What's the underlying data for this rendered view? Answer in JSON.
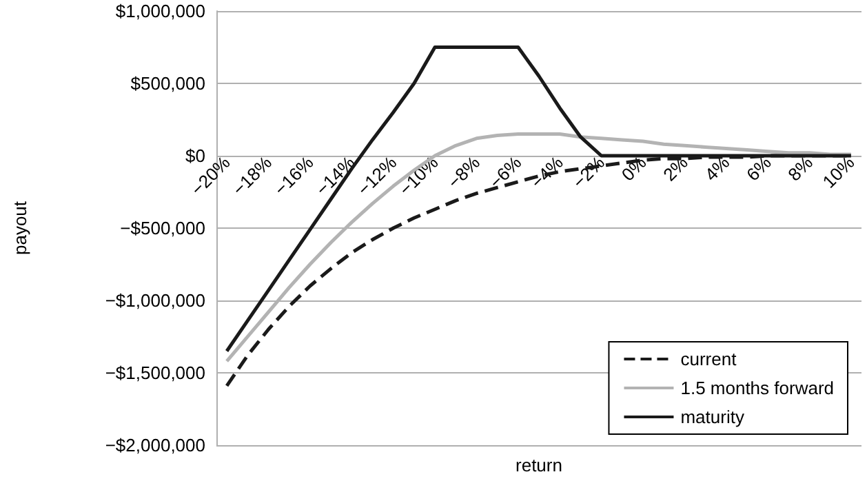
{
  "chart_data": {
    "type": "line",
    "xlabel": "return",
    "ylabel": "payout",
    "categories": [
      "−20%",
      null,
      "−18%",
      null,
      "−16%",
      null,
      "−14%",
      null,
      "−12%",
      null,
      "−10%",
      null,
      "−8%",
      null,
      "−6%",
      null,
      "−4%",
      null,
      "−2%",
      null,
      "0%",
      null,
      "2%",
      null,
      "4%",
      null,
      "6%",
      null,
      "8%",
      null,
      "10%"
    ],
    "series": [
      {
        "name": "current",
        "color": "#1a1a1a",
        "line_style": "dashed",
        "values": [
          -1590000,
          -1380000,
          -1200000,
          -1040000,
          -900000,
          -780000,
          -670000,
          -580000,
          -500000,
          -430000,
          -370000,
          -310000,
          -260000,
          -220000,
          -180000,
          -140000,
          -110000,
          -90000,
          -70000,
          -50000,
          -30000,
          -20000,
          -20000,
          -10000,
          -10000,
          -10000,
          0,
          0,
          0,
          0,
          0
        ]
      },
      {
        "name": "1.5 months forward",
        "color": "#b3b3b3",
        "line_style": "solid",
        "values": [
          -1420000,
          -1250000,
          -1080000,
          -910000,
          -750000,
          -600000,
          -460000,
          -330000,
          -210000,
          -100000,
          0,
          70000,
          120000,
          140000,
          150000,
          150000,
          150000,
          130000,
          120000,
          110000,
          100000,
          80000,
          70000,
          60000,
          50000,
          40000,
          30000,
          20000,
          20000,
          10000,
          10000
        ]
      },
      {
        "name": "maturity",
        "color": "#1a1a1a",
        "line_style": "solid",
        "values": [
          -1350000,
          -1140000,
          -930000,
          -720000,
          -510000,
          -300000,
          -90000,
          110000,
          300000,
          500000,
          750000,
          750000,
          750000,
          750000,
          750000,
          550000,
          330000,
          130000,
          0,
          0,
          0,
          0,
          0,
          0,
          0,
          0,
          0,
          0,
          0,
          0,
          0
        ]
      }
    ],
    "ylim": [
      -2000000,
      1000000
    ],
    "yticks": [
      {
        "value": -2000000,
        "label": "−$2,000,000"
      },
      {
        "value": -1500000,
        "label": "−$1,500,000"
      },
      {
        "value": -1000000,
        "label": "−$1,000,000"
      },
      {
        "value": -500000,
        "label": "−$500,000"
      },
      {
        "value": 0,
        "label": "$0"
      },
      {
        "value": 500000,
        "label": "$500,000"
      },
      {
        "value": 1000000,
        "label": "$1,000,000"
      }
    ],
    "grid": "y",
    "legend": "bottom right",
    "marker": "none"
  }
}
